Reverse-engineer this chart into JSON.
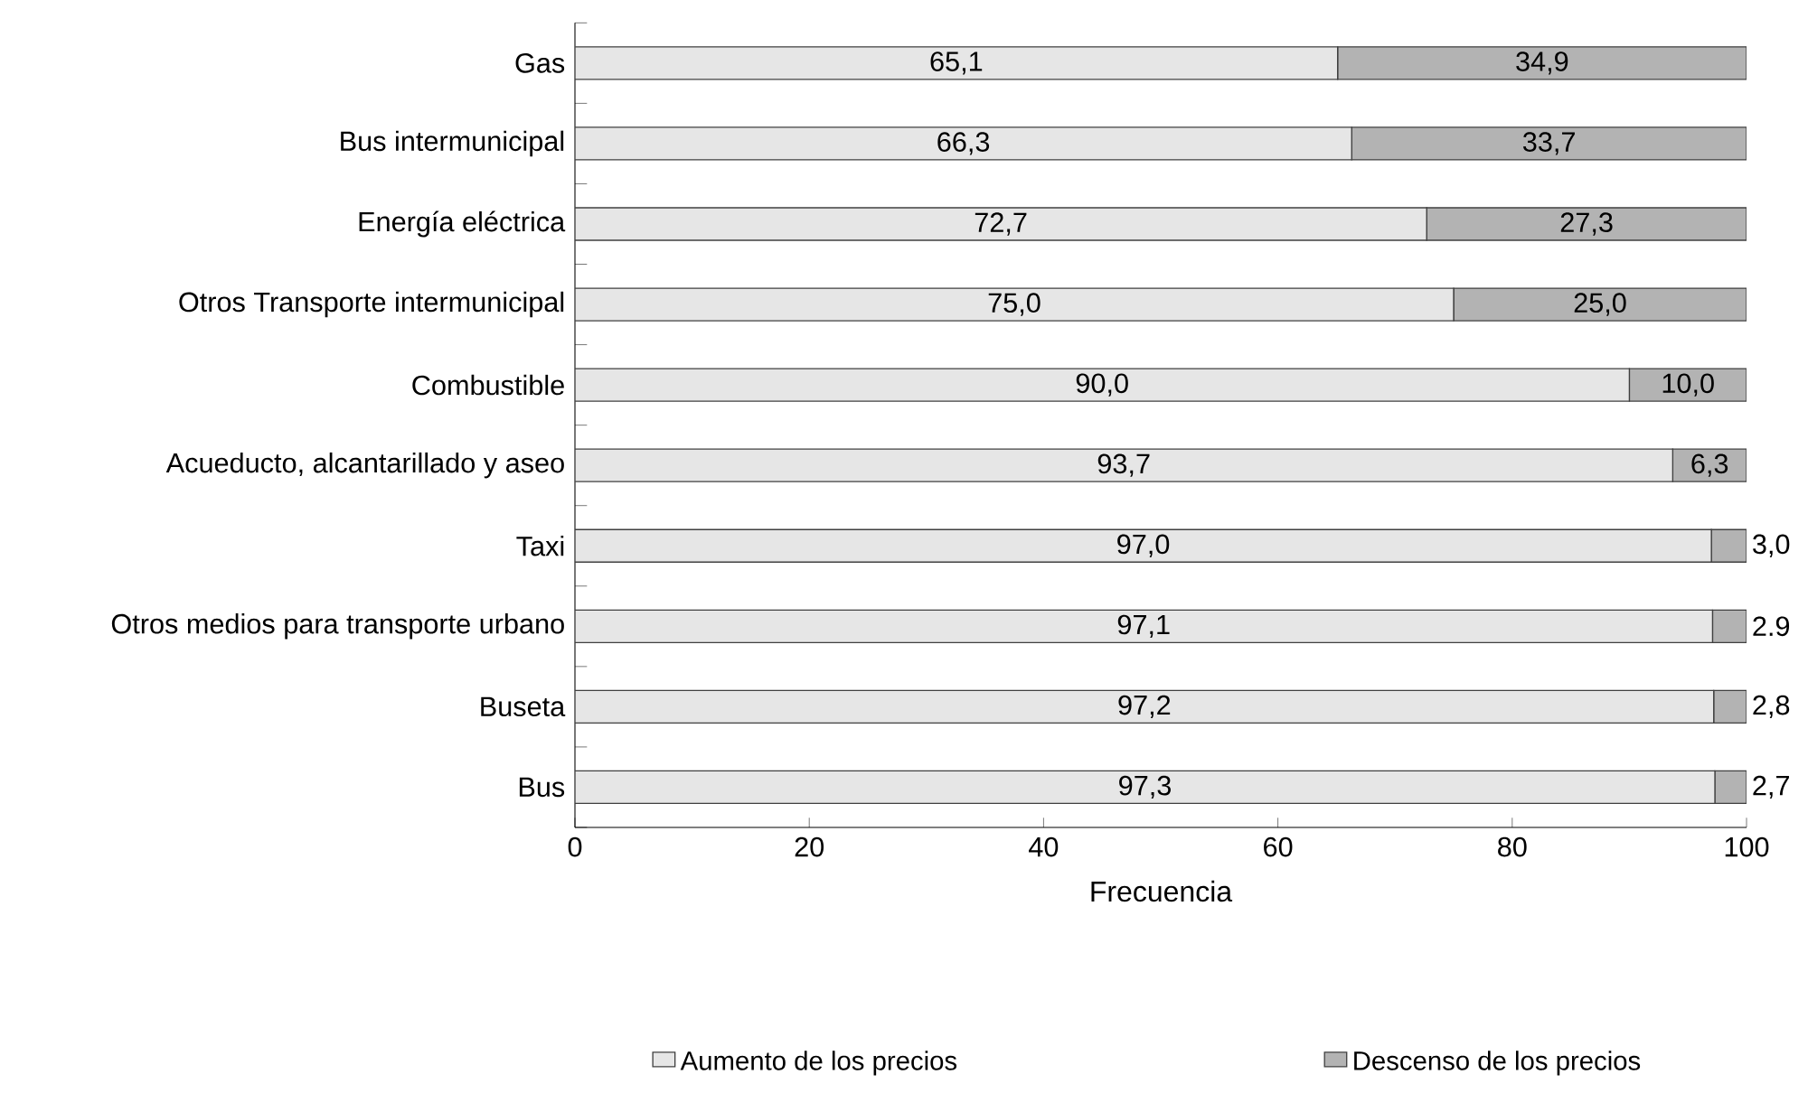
{
  "chart_data": {
    "type": "bar",
    "orientation": "horizontal",
    "stacked": true,
    "categories": [
      "Gas",
      "Bus intermunicipal",
      "Energía eléctrica",
      "Otros Transporte intermunicipal",
      "Combustible",
      "Acueducto, alcantarillado y aseo",
      "Taxi",
      "Otros medios para transporte urbano",
      "Buseta",
      "Bus"
    ],
    "series": [
      {
        "name": "Aumento de los precios",
        "color": "#e6e6e6",
        "values": [
          65.1,
          66.3,
          72.7,
          75.0,
          90.0,
          93.7,
          97.0,
          97.1,
          97.2,
          97.3
        ],
        "value_labels": [
          "65,1",
          "66,3",
          "72,7",
          "75,0",
          "90,0",
          "93,7",
          "97,0",
          "97,1",
          "97,2",
          "97,3"
        ]
      },
      {
        "name": "Descenso de los precios",
        "color": "#b3b3b3",
        "values": [
          34.9,
          33.7,
          27.3,
          25.0,
          10.0,
          6.3,
          3.0,
          2.9,
          2.8,
          2.7
        ],
        "value_labels": [
          "34,9",
          "33,7",
          "27,3",
          "25,0",
          "10,0",
          "6,3",
          "3,0",
          "2.9",
          "2,8",
          "2,7"
        ]
      }
    ],
    "xlabel": "Frecuencia",
    "xlim": [
      0,
      100
    ],
    "xticks": [
      0,
      20,
      40,
      60,
      80,
      100
    ],
    "grid": false,
    "legend": "bottom"
  }
}
